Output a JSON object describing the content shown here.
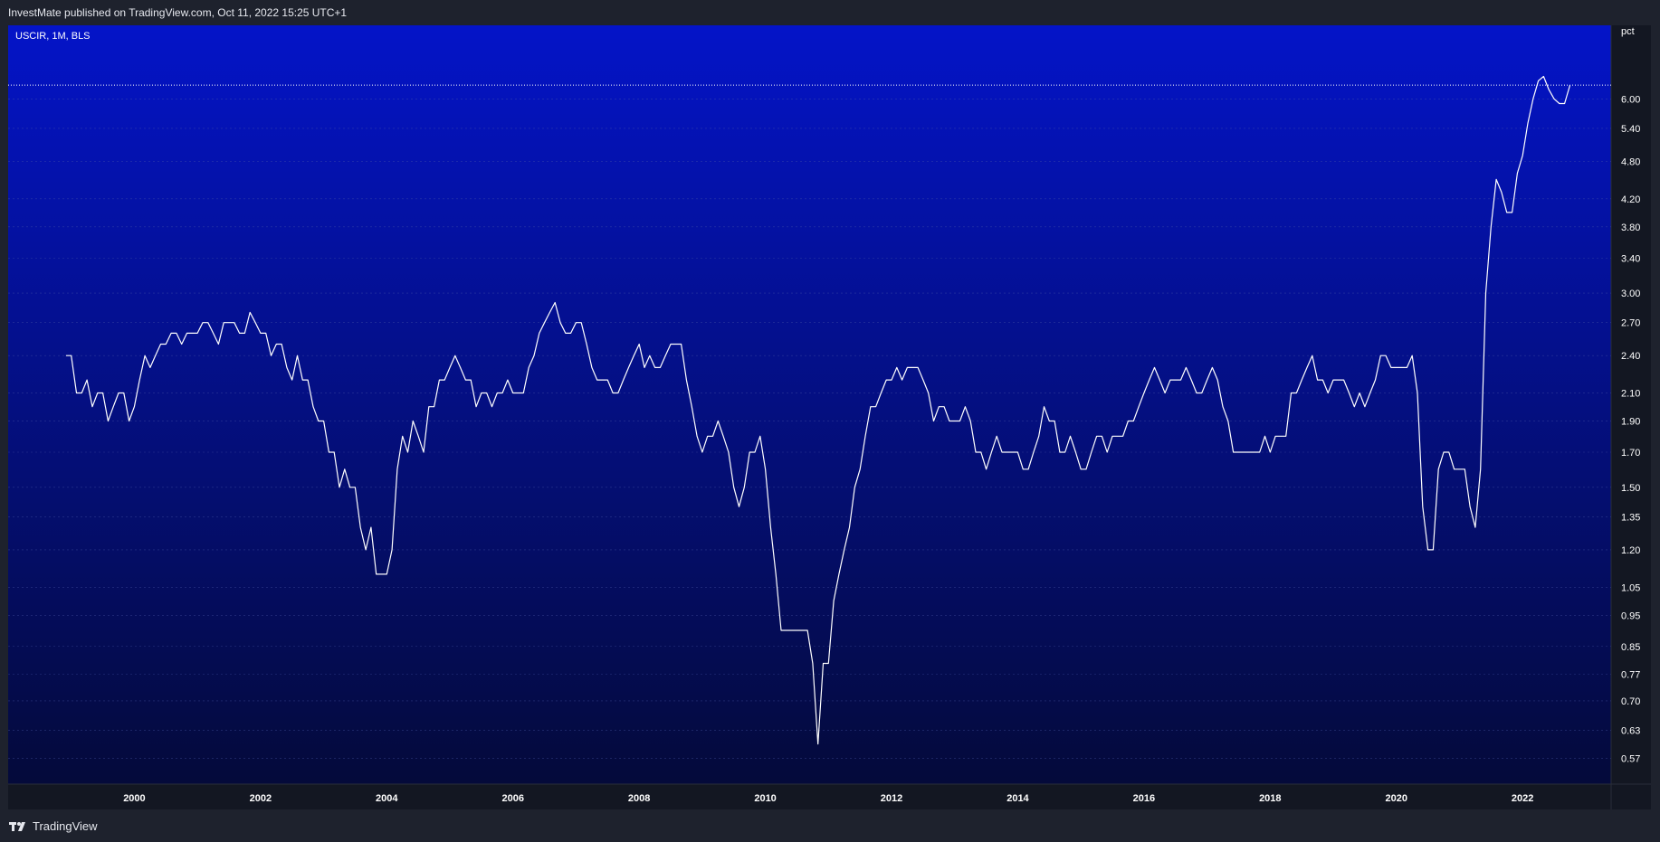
{
  "header": {
    "publisher_text": "InvestMate published on TradingView.com, Oct 11, 2022 15:25 UTC+1"
  },
  "chart": {
    "symbol_label": "USCIR, 1M, BLS",
    "unit_label": "pct"
  },
  "footer": {
    "brand": "TradingView"
  },
  "colors": {
    "gradient_top": "#0414c8",
    "gradient_bottom": "#040a3a",
    "line": "#ffffff",
    "grid": "#4a5aa8",
    "axis_text": "#ffffff",
    "frame_bg": "#131722"
  },
  "chart_data": {
    "type": "line",
    "title": "USCIR, 1M, BLS",
    "ylabel": "pct",
    "yscale": "log",
    "grid": true,
    "ylim": [
      0.52,
      7.8
    ],
    "x_ticks": [
      "2000",
      "2002",
      "2004",
      "2006",
      "2008",
      "2010",
      "2012",
      "2014",
      "2016",
      "2018",
      "2020",
      "2022"
    ],
    "y_ticks": [
      6.0,
      5.4,
      4.8,
      4.2,
      3.8,
      3.4,
      3.0,
      2.7,
      2.4,
      2.1,
      1.9,
      1.7,
      1.5,
      1.35,
      1.2,
      1.05,
      0.95,
      0.85,
      0.77,
      0.7,
      0.63,
      0.57
    ],
    "y_tick_labels": [
      "6.00",
      "5.40",
      "4.80",
      "4.20",
      "3.80",
      "3.40",
      "3.00",
      "2.70",
      "2.40",
      "2.10",
      "1.90",
      "1.70",
      "1.50",
      "1.35",
      "1.20",
      "1.05",
      "0.95",
      "0.85",
      "0.77",
      "0.70",
      "0.63",
      "0.57"
    ],
    "last_value": 6.3,
    "series": [
      {
        "x_start": "1998-12",
        "frequency": "monthly",
        "values": [
          2.4,
          2.4,
          2.1,
          2.1,
          2.2,
          2.0,
          2.1,
          2.1,
          1.9,
          2.0,
          2.1,
          2.1,
          1.9,
          2.0,
          2.2,
          2.4,
          2.3,
          2.4,
          2.5,
          2.5,
          2.6,
          2.6,
          2.5,
          2.6,
          2.6,
          2.6,
          2.7,
          2.7,
          2.6,
          2.5,
          2.7,
          2.7,
          2.7,
          2.6,
          2.6,
          2.8,
          2.7,
          2.6,
          2.6,
          2.4,
          2.5,
          2.5,
          2.3,
          2.2,
          2.4,
          2.2,
          2.2,
          2.0,
          1.9,
          1.9,
          1.7,
          1.7,
          1.5,
          1.6,
          1.5,
          1.5,
          1.3,
          1.2,
          1.3,
          1.1,
          1.1,
          1.1,
          1.2,
          1.6,
          1.8,
          1.7,
          1.9,
          1.8,
          1.7,
          2.0,
          2.0,
          2.2,
          2.2,
          2.3,
          2.4,
          2.3,
          2.2,
          2.2,
          2.0,
          2.1,
          2.1,
          2.0,
          2.1,
          2.1,
          2.2,
          2.1,
          2.1,
          2.1,
          2.3,
          2.4,
          2.6,
          2.7,
          2.8,
          2.9,
          2.7,
          2.6,
          2.6,
          2.7,
          2.7,
          2.5,
          2.3,
          2.2,
          2.2,
          2.2,
          2.1,
          2.1,
          2.2,
          2.3,
          2.4,
          2.5,
          2.3,
          2.4,
          2.3,
          2.3,
          2.4,
          2.5,
          2.5,
          2.5,
          2.2,
          2.0,
          1.8,
          1.7,
          1.8,
          1.8,
          1.9,
          1.8,
          1.7,
          1.5,
          1.4,
          1.5,
          1.7,
          1.7,
          1.8,
          1.6,
          1.3,
          1.1,
          0.9,
          0.9,
          0.9,
          0.9,
          0.9,
          0.9,
          0.8,
          0.6,
          0.8,
          0.8,
          1.0,
          1.1,
          1.2,
          1.3,
          1.5,
          1.6,
          1.8,
          2.0,
          2.0,
          2.1,
          2.2,
          2.2,
          2.3,
          2.2,
          2.3,
          2.3,
          2.3,
          2.2,
          2.1,
          1.9,
          2.0,
          2.0,
          1.9,
          1.9,
          1.9,
          2.0,
          1.9,
          1.7,
          1.7,
          1.6,
          1.7,
          1.8,
          1.7,
          1.7,
          1.7,
          1.7,
          1.6,
          1.6,
          1.7,
          1.8,
          2.0,
          1.9,
          1.9,
          1.7,
          1.7,
          1.8,
          1.7,
          1.6,
          1.6,
          1.7,
          1.8,
          1.8,
          1.7,
          1.8,
          1.8,
          1.8,
          1.9,
          1.9,
          2.0,
          2.1,
          2.2,
          2.3,
          2.2,
          2.1,
          2.2,
          2.2,
          2.2,
          2.3,
          2.2,
          2.1,
          2.1,
          2.2,
          2.3,
          2.2,
          2.0,
          1.9,
          1.7,
          1.7,
          1.7,
          1.7,
          1.7,
          1.7,
          1.8,
          1.7,
          1.8,
          1.8,
          1.8,
          2.1,
          2.1,
          2.2,
          2.3,
          2.4,
          2.2,
          2.2,
          2.1,
          2.2,
          2.2,
          2.2,
          2.1,
          2.0,
          2.1,
          2.0,
          2.1,
          2.2,
          2.4,
          2.4,
          2.3,
          2.3,
          2.3,
          2.3,
          2.4,
          2.1,
          1.4,
          1.2,
          1.2,
          1.6,
          1.7,
          1.7,
          1.6,
          1.6,
          1.6,
          1.4,
          1.3,
          1.6,
          3.0,
          3.8,
          4.5,
          4.3,
          4.0,
          4.0,
          4.6,
          4.9,
          5.5,
          6.0,
          6.4,
          6.5,
          6.2,
          6.0,
          5.9,
          5.9,
          6.3
        ]
      }
    ]
  }
}
